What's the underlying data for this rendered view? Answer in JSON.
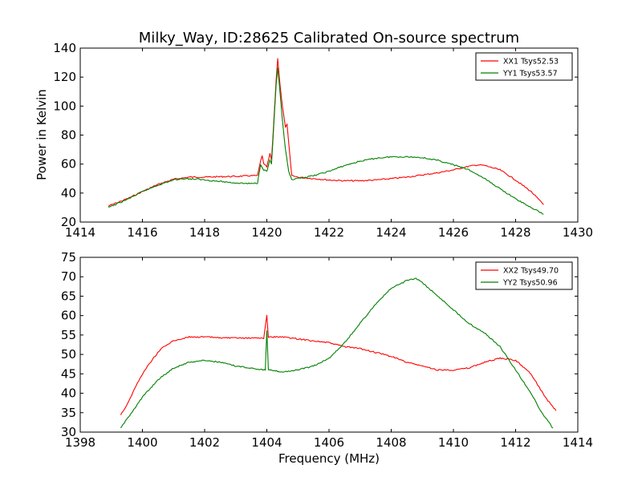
{
  "figure": {
    "title": "Milky_Way, ID:28625 Calibrated On-source spectrum",
    "xlabel": "Frequency (MHz)",
    "ylabel": "Power in Kelvin"
  },
  "chart_data": [
    {
      "type": "line",
      "title": "Milky_Way, ID:28625 Calibrated On-source spectrum",
      "xlabel": "",
      "ylabel": "Power in Kelvin",
      "xlim": [
        1414,
        1430
      ],
      "ylim": [
        20,
        140
      ],
      "xticks": [
        1414,
        1416,
        1418,
        1420,
        1422,
        1424,
        1426,
        1428,
        1430
      ],
      "yticks": [
        20,
        40,
        60,
        80,
        100,
        120,
        140
      ],
      "grid": false,
      "legend_position": "top-right",
      "series": [
        {
          "name": "XX1 Tsys52.53",
          "color": "#ff0000",
          "points": [
            [
              1414.9,
              31
            ],
            [
              1415.5,
              36
            ],
            [
              1416.0,
              41
            ],
            [
              1416.5,
              46
            ],
            [
              1417.0,
              49.5
            ],
            [
              1417.5,
              51
            ],
            [
              1418.0,
              51
            ],
            [
              1418.5,
              51.3
            ],
            [
              1419.0,
              51.5
            ],
            [
              1419.5,
              52
            ],
            [
              1419.7,
              52
            ],
            [
              1419.8,
              62
            ],
            [
              1419.85,
              66
            ],
            [
              1419.9,
              60
            ],
            [
              1420.0,
              58
            ],
            [
              1420.1,
              67
            ],
            [
              1420.15,
              63
            ],
            [
              1420.2,
              80
            ],
            [
              1420.3,
              118
            ],
            [
              1420.35,
              133
            ],
            [
              1420.4,
              120
            ],
            [
              1420.5,
              100
            ],
            [
              1420.6,
              85
            ],
            [
              1420.65,
              88
            ],
            [
              1420.7,
              75
            ],
            [
              1420.8,
              52
            ],
            [
              1421.0,
              51
            ],
            [
              1421.5,
              50
            ],
            [
              1422.0,
              49
            ],
            [
              1422.5,
              48.5
            ],
            [
              1423.0,
              48.5
            ],
            [
              1423.5,
              49
            ],
            [
              1424.0,
              50
            ],
            [
              1424.5,
              51
            ],
            [
              1425.0,
              52.5
            ],
            [
              1425.5,
              54
            ],
            [
              1426.0,
              56
            ],
            [
              1426.5,
              58.5
            ],
            [
              1426.8,
              59.5
            ],
            [
              1427.0,
              59
            ],
            [
              1427.5,
              56
            ],
            [
              1428.0,
              49
            ],
            [
              1428.5,
              41
            ],
            [
              1428.9,
              32
            ]
          ]
        },
        {
          "name": "YY1 Tsys53.57",
          "color": "#008000",
          "points": [
            [
              1414.9,
              30
            ],
            [
              1415.5,
              35.5
            ],
            [
              1416.0,
              41
            ],
            [
              1416.5,
              45.5
            ],
            [
              1417.0,
              49
            ],
            [
              1417.3,
              50
            ],
            [
              1417.8,
              49.5
            ],
            [
              1418.5,
              48
            ],
            [
              1419.0,
              47
            ],
            [
              1419.5,
              46.5
            ],
            [
              1419.7,
              47
            ],
            [
              1419.8,
              60
            ],
            [
              1419.85,
              58
            ],
            [
              1419.9,
              56
            ],
            [
              1420.0,
              55
            ],
            [
              1420.1,
              63
            ],
            [
              1420.15,
              60
            ],
            [
              1420.2,
              78
            ],
            [
              1420.3,
              115
            ],
            [
              1420.35,
              126
            ],
            [
              1420.4,
              115
            ],
            [
              1420.5,
              90
            ],
            [
              1420.6,
              70
            ],
            [
              1420.7,
              55
            ],
            [
              1420.8,
              49
            ],
            [
              1421.0,
              50
            ],
            [
              1421.5,
              52
            ],
            [
              1422.0,
              55
            ],
            [
              1422.5,
              59
            ],
            [
              1423.0,
              62
            ],
            [
              1423.5,
              64
            ],
            [
              1424.0,
              65
            ],
            [
              1424.5,
              65
            ],
            [
              1425.0,
              64.5
            ],
            [
              1425.5,
              62.5
            ],
            [
              1426.0,
              59.5
            ],
            [
              1426.5,
              56
            ],
            [
              1427.0,
              50
            ],
            [
              1427.5,
              43
            ],
            [
              1428.0,
              36
            ],
            [
              1428.5,
              30
            ],
            [
              1428.9,
              25.5
            ]
          ]
        }
      ]
    },
    {
      "type": "line",
      "title": "",
      "xlabel": "Frequency (MHz)",
      "ylabel": "",
      "xlim": [
        1398,
        1414
      ],
      "ylim": [
        30,
        75
      ],
      "xticks": [
        1398,
        1400,
        1402,
        1404,
        1406,
        1408,
        1410,
        1412,
        1414
      ],
      "yticks": [
        30,
        35,
        40,
        45,
        50,
        55,
        60,
        65,
        70,
        75
      ],
      "grid": false,
      "legend_position": "top-right",
      "series": [
        {
          "name": "XX2 Tsys49.70",
          "color": "#ff0000",
          "points": [
            [
              1399.3,
              34.5
            ],
            [
              1399.5,
              37
            ],
            [
              1399.8,
              42
            ],
            [
              1400.0,
              45
            ],
            [
              1400.3,
              48.5
            ],
            [
              1400.6,
              51.5
            ],
            [
              1401.0,
              53.5
            ],
            [
              1401.5,
              54.5
            ],
            [
              1402.0,
              54.5
            ],
            [
              1402.5,
              54.3
            ],
            [
              1403.0,
              54.2
            ],
            [
              1403.5,
              54.2
            ],
            [
              1403.9,
              54.2
            ],
            [
              1404.0,
              60
            ],
            [
              1404.05,
              54.5
            ],
            [
              1404.5,
              54.5
            ],
            [
              1405.0,
              54
            ],
            [
              1405.5,
              53.5
            ],
            [
              1406.0,
              53
            ],
            [
              1406.5,
              52
            ],
            [
              1407.0,
              51.5
            ],
            [
              1407.5,
              50.5
            ],
            [
              1408.0,
              49.5
            ],
            [
              1408.5,
              48
            ],
            [
              1409.0,
              47
            ],
            [
              1409.5,
              46
            ],
            [
              1410.0,
              46
            ],
            [
              1410.5,
              46.5
            ],
            [
              1411.0,
              48
            ],
            [
              1411.5,
              49
            ],
            [
              1412.0,
              48.5
            ],
            [
              1412.5,
              45
            ],
            [
              1412.8,
              41
            ],
            [
              1413.0,
              38.5
            ],
            [
              1413.3,
              35.5
            ]
          ]
        },
        {
          "name": "YY2 Tsys50.96",
          "color": "#008000",
          "points": [
            [
              1399.3,
              31
            ],
            [
              1399.6,
              34.5
            ],
            [
              1400.0,
              39
            ],
            [
              1400.5,
              43.5
            ],
            [
              1401.0,
              46.5
            ],
            [
              1401.5,
              48
            ],
            [
              1402.0,
              48.5
            ],
            [
              1402.5,
              48
            ],
            [
              1403.0,
              47
            ],
            [
              1403.5,
              46.5
            ],
            [
              1403.95,
              46
            ],
            [
              1404.0,
              56
            ],
            [
              1404.05,
              46
            ],
            [
              1404.5,
              45.5
            ],
            [
              1405.0,
              46
            ],
            [
              1405.5,
              47
            ],
            [
              1406.0,
              49
            ],
            [
              1406.5,
              53
            ],
            [
              1407.0,
              58
            ],
            [
              1407.5,
              63
            ],
            [
              1408.0,
              67
            ],
            [
              1408.5,
              69
            ],
            [
              1408.8,
              69.5
            ],
            [
              1409.0,
              68.5
            ],
            [
              1409.5,
              65
            ],
            [
              1410.0,
              61.5
            ],
            [
              1410.5,
              58
            ],
            [
              1411.0,
              55.5
            ],
            [
              1411.5,
              52
            ],
            [
              1412.0,
              46
            ],
            [
              1412.5,
              40
            ],
            [
              1412.8,
              35.5
            ],
            [
              1413.2,
              31
            ]
          ]
        }
      ]
    }
  ]
}
